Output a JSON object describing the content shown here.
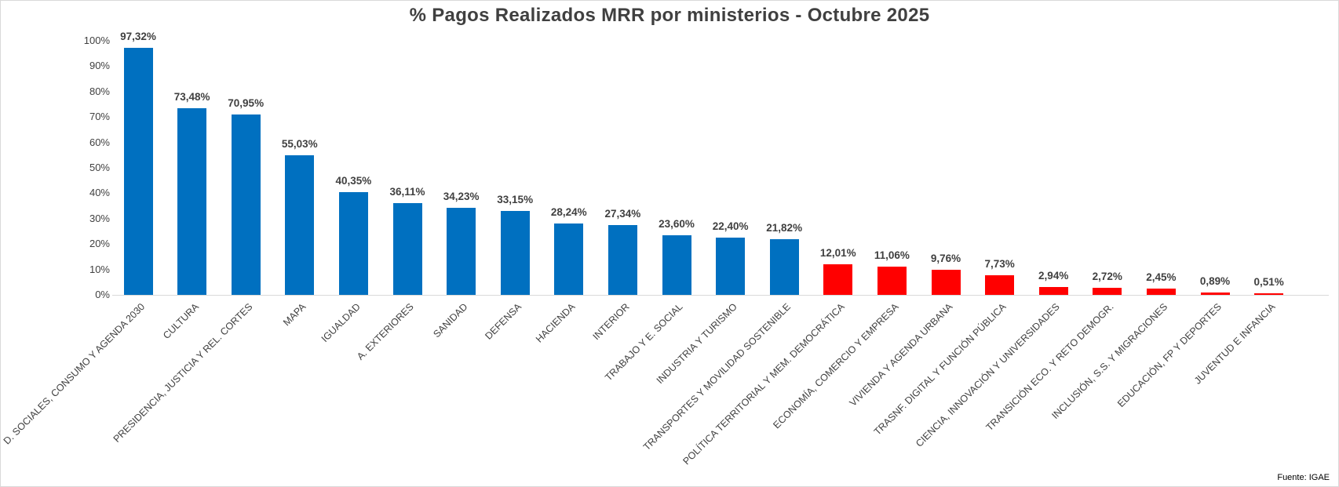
{
  "chart_data": {
    "type": "bar",
    "title": "% Pagos Realizados MRR por ministerios - Octubre 2025",
    "xlabel": "",
    "ylabel": "",
    "ylim": [
      0,
      100
    ],
    "yticks": [
      "0%",
      "10%",
      "20%",
      "30%",
      "40%",
      "50%",
      "60%",
      "70%",
      "80%",
      "90%",
      "100%"
    ],
    "grid": false,
    "legend": null,
    "source": "Fuente: IGAE",
    "colors": {
      "above_20": "#0070C0",
      "below_20": "#FF0000"
    },
    "categories": [
      "D. SOCIALES, CONSUMO Y AGENDA 2030",
      "CULTURA",
      "PRESIDENCIA, JUSTICIA Y REL. CORTES",
      "MAPA",
      "IGUALDAD",
      "A. EXTERIORES",
      "SANIDAD",
      "DEFENSA",
      "HACIENDA",
      "INTERIOR",
      "TRABAJO Y E. SOCIAL",
      "INDUSTRIA Y TURISMO",
      "TRANSPORTES Y MOVILIDAD SOSTENIBLE",
      "POLÍTICA TERRITORIAL Y MEM. DEMOCRÁTICA",
      "ECONOMÍA, COMERCIO Y EMPRESA",
      "VIVIENDA Y AGENDA URBANA",
      "TRASNF. DIGITAL Y FUNCIÓN PÚBLICA",
      "CIENCIA, INNOVACIÓN Y UNIVERSIDADES",
      "TRANSICIÓN ECO. Y RETO DEMOGR.",
      "INCLUSIÓN, S.S. Y MIGRACIONES",
      "EDUCACIÓN, FP Y DEPORTES",
      "JUVENTUD E INFANCIA"
    ],
    "values": [
      97.32,
      73.48,
      70.95,
      55.03,
      40.35,
      36.11,
      34.23,
      33.15,
      28.24,
      27.34,
      23.6,
      22.4,
      21.82,
      12.01,
      11.06,
      9.76,
      7.73,
      2.94,
      2.72,
      2.45,
      0.89,
      0.51
    ],
    "value_labels": [
      "97,32%",
      "73,48%",
      "70,95%",
      "55,03%",
      "40,35%",
      "36,11%",
      "34,23%",
      "33,15%",
      "28,24%",
      "27,34%",
      "23,60%",
      "22,40%",
      "21,82%",
      "12,01%",
      "11,06%",
      "9,76%",
      "7,73%",
      "2,94%",
      "2,72%",
      "2,45%",
      "0,89%",
      "0,51%"
    ],
    "bar_colors": [
      "#0070C0",
      "#0070C0",
      "#0070C0",
      "#0070C0",
      "#0070C0",
      "#0070C0",
      "#0070C0",
      "#0070C0",
      "#0070C0",
      "#0070C0",
      "#0070C0",
      "#0070C0",
      "#0070C0",
      "#FF0000",
      "#FF0000",
      "#FF0000",
      "#FF0000",
      "#FF0000",
      "#FF0000",
      "#FF0000",
      "#FF0000",
      "#FF0000"
    ]
  }
}
